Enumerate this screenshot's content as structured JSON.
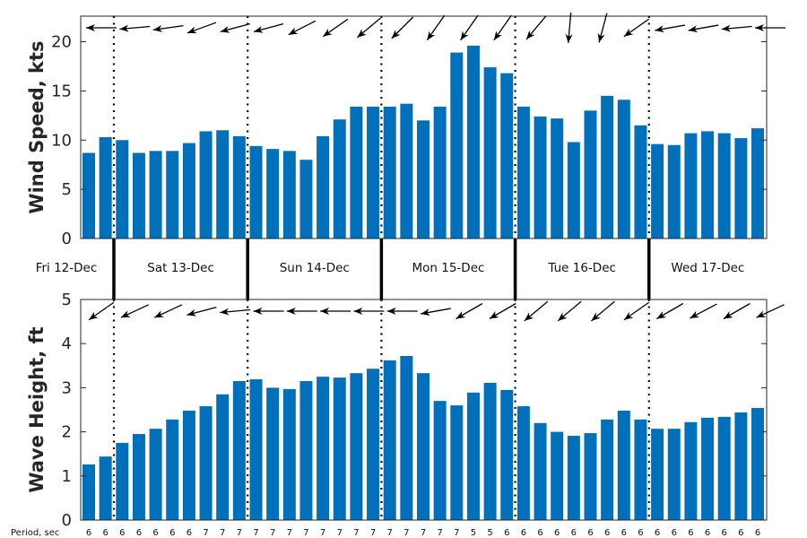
{
  "chart_data": [
    {
      "type": "bar",
      "title": "",
      "ylabel": "Wind Speed, kts",
      "ylim": [
        0,
        22.6
      ],
      "yticks": [
        "0",
        "5",
        "10",
        "15",
        "20"
      ],
      "bar_color": "#0070BB",
      "values": [
        8.7,
        10.3,
        10.0,
        8.7,
        8.9,
        8.9,
        9.7,
        10.9,
        11.0,
        10.4,
        9.4,
        9.1,
        8.9,
        8.0,
        10.4,
        12.1,
        13.4,
        13.4,
        13.4,
        13.7,
        12.0,
        13.4,
        18.9,
        19.6,
        17.4,
        16.8,
        13.4,
        12.4,
        12.2,
        9.8,
        13.0,
        14.5,
        14.1,
        11.5,
        9.6,
        9.5,
        10.7,
        10.9,
        10.7,
        10.2,
        11.2
      ],
      "direction_arrows_deg": [
        180,
        185,
        188,
        200,
        195,
        195,
        207,
        215,
        220,
        225,
        235,
        235,
        235,
        230,
        265,
        255,
        215,
        190,
        190,
        185,
        180
      ]
    },
    {
      "type": "bar",
      "title": "",
      "ylabel": "Wave Height, ft",
      "ylim": [
        0,
        5
      ],
      "yticks": [
        "0",
        "1",
        "2",
        "3",
        "4",
        "5"
      ],
      "bar_color": "#0070BB",
      "values": [
        1.26,
        1.44,
        1.75,
        1.95,
        2.07,
        2.28,
        2.48,
        2.58,
        2.85,
        3.15,
        3.19,
        3.0,
        2.97,
        3.15,
        3.25,
        3.23,
        3.33,
        3.43,
        3.62,
        3.72,
        3.33,
        2.7,
        2.6,
        2.89,
        3.11,
        2.95,
        2.58,
        2.2,
        2.0,
        1.91,
        1.97,
        2.28,
        2.48,
        2.28,
        2.07,
        2.07,
        2.22,
        2.32,
        2.34,
        2.44,
        2.54
      ],
      "direction_arrows_deg": [
        215,
        205,
        205,
        195,
        185,
        180,
        180,
        180,
        180,
        180,
        190,
        210,
        210,
        220,
        220,
        220,
        215,
        210,
        208,
        210,
        205
      ]
    }
  ],
  "days": [
    "Fri 12-Dec",
    "Sat 13-Dec",
    "Sun 14-Dec",
    "Mon 15-Dec",
    "Tue 16-Dec",
    "Wed 17-Dec"
  ],
  "day_boundaries_after_bar": [
    2,
    10,
    18,
    26,
    34
  ],
  "period_label": "Period, sec",
  "periods": [
    "6",
    "6",
    "6",
    "6",
    "6",
    "6",
    "6",
    "7",
    "7",
    "7",
    "7",
    "7",
    "7",
    "7",
    "7",
    "7",
    "7",
    "7",
    "7",
    "7",
    "7",
    "7",
    "7",
    "5",
    "5",
    "6",
    "6",
    "6",
    "6",
    "6",
    "6",
    "6",
    "6",
    "6",
    "6",
    "6",
    "6",
    "6",
    "6",
    "6",
    "6"
  ]
}
